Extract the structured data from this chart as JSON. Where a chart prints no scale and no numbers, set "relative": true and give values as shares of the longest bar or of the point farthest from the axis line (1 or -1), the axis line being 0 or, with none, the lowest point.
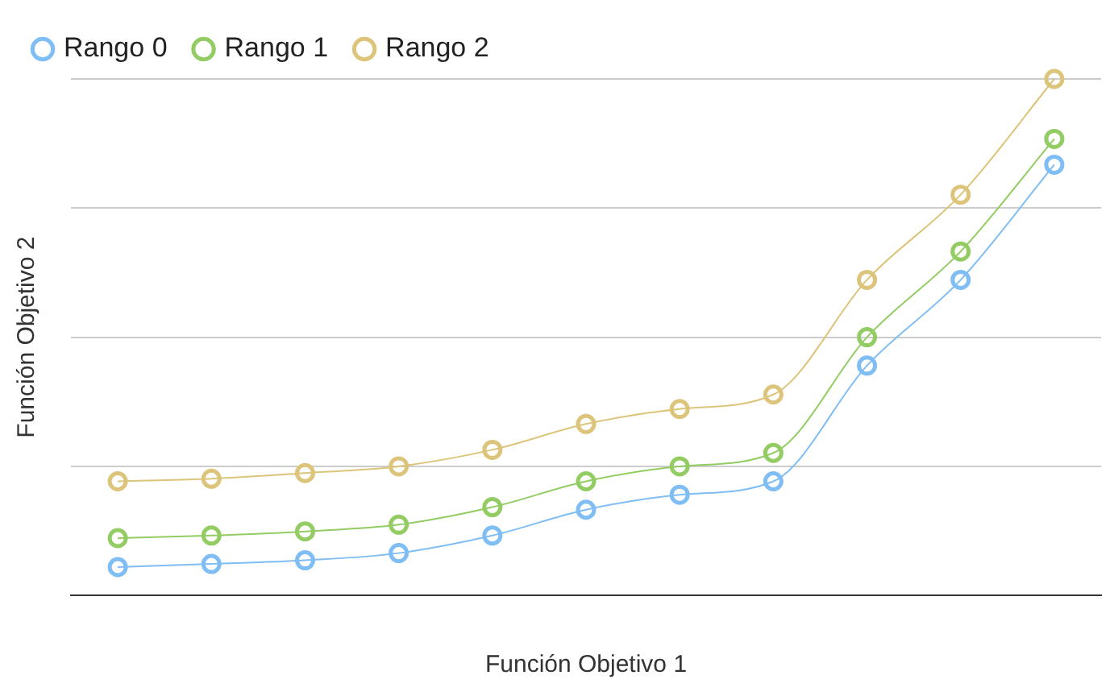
{
  "chart_data": {
    "type": "line",
    "xlabel": "Función Objetivo 1",
    "ylabel": "Función Objetivo 2",
    "relative": true,
    "grid": "y",
    "legend": "top left",
    "marker": "circle",
    "line_style": "solid",
    "categories": [
      null,
      null,
      null,
      null,
      null,
      null,
      null,
      null,
      null,
      null,
      null
    ],
    "series": [
      {
        "name": "Rango 0",
        "color": "#7fbdf5",
        "values": [
          0.055,
          0.061,
          0.068,
          0.082,
          0.116,
          0.166,
          0.195,
          0.221,
          0.445,
          0.611,
          0.834
        ]
      },
      {
        "name": "Rango 1",
        "color": "#92cc62",
        "values": [
          0.111,
          0.116,
          0.124,
          0.137,
          0.171,
          0.221,
          0.25,
          0.276,
          0.5,
          0.666,
          0.884
        ]
      },
      {
        "name": "Rango 2",
        "color": "#dcc57a",
        "values": [
          0.221,
          0.226,
          0.237,
          0.25,
          0.282,
          0.332,
          0.361,
          0.389,
          0.611,
          0.776,
          1.0
        ]
      }
    ]
  }
}
